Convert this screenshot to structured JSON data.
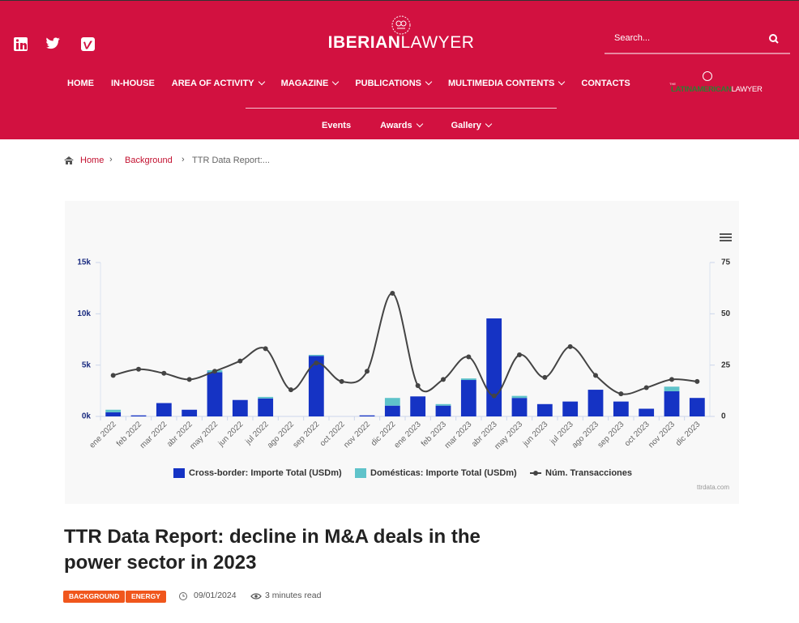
{
  "header": {
    "logo": {
      "part1": "IBERIAN",
      "part2": "LAWYER"
    },
    "search_placeholder": "Search...",
    "nav": [
      {
        "label": "HOME",
        "dropdown": false
      },
      {
        "label": "IN-HOUSE",
        "dropdown": false
      },
      {
        "label": "AREA OF ACTIVITY",
        "dropdown": true
      },
      {
        "label": "MAGAZINE",
        "dropdown": true
      },
      {
        "label": "PUBLICATIONS",
        "dropdown": true
      },
      {
        "label": "MULTIMEDIA CONTENTS",
        "dropdown": true
      },
      {
        "label": "CONTACTS",
        "dropdown": false
      }
    ],
    "subnav": [
      {
        "label": "Events",
        "dropdown": false
      },
      {
        "label": "Awards",
        "dropdown": true
      },
      {
        "label": "Gallery",
        "dropdown": true
      }
    ],
    "partner_logo": {
      "prefix": "THE",
      "part1": "LATINAMERICAN",
      "part2": "LAWYER"
    }
  },
  "breadcrumb": [
    "Home",
    "Background",
    "TTR Data Report:..."
  ],
  "chart_data": {
    "type": "bar",
    "stacked": true,
    "categories": [
      "ene 2022",
      "feb 2022",
      "mar 2022",
      "abr 2022",
      "may 2022",
      "jun 2022",
      "jul 2022",
      "ago 2022",
      "sep 2022",
      "oct 2022",
      "nov 2022",
      "dic 2022",
      "ene 2023",
      "feb 2023",
      "mar 2023",
      "abr 2023",
      "may 2023",
      "jun 2023",
      "jul 2023",
      "ago 2023",
      "sep 2023",
      "oct 2023",
      "nov 2023",
      "dic 2023"
    ],
    "series": [
      {
        "name": "Cross-border: Importe Total (USDm)",
        "type": "bar",
        "color": "#1533c4",
        "values": [
          400,
          100,
          1300,
          650,
          4300,
          1600,
          1750,
          0,
          5900,
          0,
          100,
          1050,
          1950,
          1050,
          3550,
          9550,
          1800,
          1200,
          1450,
          2600,
          1450,
          750,
          2450,
          1800
        ]
      },
      {
        "name": "Domésticas: Importe Total (USDm)",
        "type": "bar",
        "color": "#5fc3ca",
        "values": [
          250,
          0,
          0,
          0,
          200,
          0,
          150,
          0,
          100,
          0,
          0,
          750,
          0,
          150,
          150,
          0,
          200,
          0,
          0,
          0,
          0,
          0,
          450,
          0
        ]
      },
      {
        "name": "Núm. Transacciones",
        "type": "line",
        "axis": "y2",
        "color": "#444444",
        "values": [
          20,
          23,
          21,
          18,
          22,
          27,
          33,
          13,
          26,
          17,
          22,
          60,
          15,
          18,
          29,
          10,
          30,
          19,
          34,
          20,
          11,
          14,
          18,
          17
        ]
      }
    ],
    "ylim": [
      0,
      15000
    ],
    "yticks": [
      {
        "value": 0,
        "label": "0k"
      },
      {
        "value": 5000,
        "label": "5k"
      },
      {
        "value": 10000,
        "label": "10k"
      },
      {
        "value": 15000,
        "label": "15k"
      }
    ],
    "y2lim": [
      0,
      75
    ],
    "y2ticks": [
      0,
      25,
      50,
      75
    ],
    "grid": false,
    "legend": "bottom",
    "credit": "ttrdata.com"
  },
  "article": {
    "title": "TTR Data Report: decline in M&A deals in the power sector in 2023",
    "tags": [
      "BACKGROUND",
      "ENERGY"
    ],
    "date": "09/01/2024",
    "read_time": "3 minutes read"
  }
}
